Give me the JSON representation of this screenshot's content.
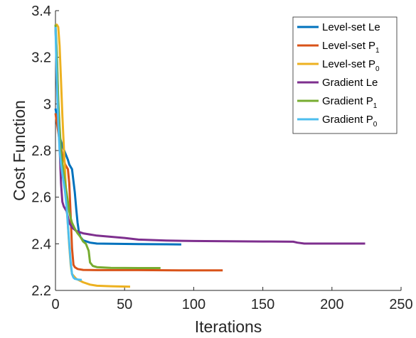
{
  "chart_data": {
    "type": "line",
    "xlabel": "Iterations",
    "ylabel": "Cost Function",
    "xlim": [
      0,
      250
    ],
    "ylim": [
      2.2,
      3.4
    ],
    "xticks": [
      0,
      50,
      100,
      150,
      200,
      250
    ],
    "xtick_labels": [
      "0",
      "50",
      "100",
      "150",
      "200",
      "250"
    ],
    "yticks": [
      2.2,
      2.4,
      2.6,
      2.8,
      3.0,
      3.2,
      3.4
    ],
    "ytick_labels": [
      "2.2",
      "2.4",
      "2.6",
      "2.8",
      "3",
      "3.2",
      "3.4"
    ],
    "grid": false,
    "legend_position": "top-right",
    "series": [
      {
        "name": "Level-set Le",
        "legend_main": "Level-set Le",
        "legend_sub": "",
        "color": "#0072BD",
        "x": [
          0,
          1,
          2,
          3,
          5,
          7,
          9,
          10,
          12,
          14,
          15,
          16,
          17,
          18,
          20,
          25,
          30,
          40,
          60,
          80,
          91
        ],
        "y": [
          2.98,
          2.95,
          2.9,
          2.86,
          2.82,
          2.79,
          2.76,
          2.74,
          2.72,
          2.62,
          2.55,
          2.49,
          2.45,
          2.43,
          2.415,
          2.405,
          2.401,
          2.4,
          2.399,
          2.398,
          2.397
        ]
      },
      {
        "name": "Level-set P1",
        "legend_main": "Level-set P",
        "legend_sub": "1",
        "color": "#D95319",
        "x": [
          0,
          1,
          2,
          3,
          5,
          7,
          9,
          10,
          11,
          12,
          13,
          14,
          16,
          20,
          30,
          60,
          90,
          121
        ],
        "y": [
          2.96,
          2.92,
          2.88,
          2.84,
          2.78,
          2.74,
          2.72,
          2.66,
          2.52,
          2.38,
          2.31,
          2.3,
          2.292,
          2.288,
          2.287,
          2.287,
          2.286,
          2.286
        ]
      },
      {
        "name": "Level-set P0",
        "legend_main": "Level-set P",
        "legend_sub": "0",
        "color": "#EDB120",
        "x": [
          0,
          1,
          2,
          3,
          4,
          5,
          6,
          7,
          8,
          9,
          10,
          11,
          12,
          15,
          20,
          25,
          30,
          40,
          54
        ],
        "y": [
          3.34,
          3.34,
          3.33,
          3.25,
          3.1,
          2.95,
          2.82,
          2.7,
          2.58,
          2.48,
          2.39,
          2.31,
          2.27,
          2.25,
          2.235,
          2.225,
          2.22,
          2.218,
          2.216
        ]
      },
      {
        "name": "Gradient Le",
        "legend_main": "Gradient Le",
        "legend_sub": "",
        "color": "#7E2F8E",
        "x": [
          0,
          1,
          2,
          3,
          4,
          5,
          6,
          8,
          10,
          12,
          15,
          20,
          30,
          50,
          60,
          80,
          100,
          150,
          172,
          175,
          180,
          200,
          224
        ],
        "y": [
          3.32,
          3.2,
          3.0,
          2.82,
          2.66,
          2.58,
          2.56,
          2.54,
          2.49,
          2.47,
          2.455,
          2.445,
          2.435,
          2.425,
          2.418,
          2.414,
          2.412,
          2.41,
          2.409,
          2.405,
          2.401,
          2.401,
          2.401
        ]
      },
      {
        "name": "Gradient P1",
        "legend_main": "Gradient P",
        "legend_sub": "1",
        "color": "#77AC30",
        "x": [
          0,
          1,
          2,
          3,
          4,
          5,
          6,
          7,
          8,
          9,
          10,
          11,
          12,
          14,
          16,
          18,
          20,
          22,
          24,
          25,
          27,
          30,
          40,
          60,
          76
        ],
        "y": [
          3.34,
          3.22,
          3.02,
          2.9,
          2.8,
          2.74,
          2.7,
          2.66,
          2.62,
          2.58,
          2.54,
          2.51,
          2.49,
          2.465,
          2.445,
          2.43,
          2.41,
          2.4,
          2.37,
          2.32,
          2.305,
          2.3,
          2.297,
          2.296,
          2.296
        ]
      },
      {
        "name": "Gradient P0",
        "legend_main": "Gradient P",
        "legend_sub": "0",
        "color": "#4DBEEE",
        "x": [
          0,
          1,
          2,
          3,
          4,
          5,
          6,
          7,
          8,
          9,
          10,
          11,
          12,
          13,
          14,
          16,
          19
        ],
        "y": [
          3.33,
          3.1,
          2.92,
          2.8,
          2.74,
          2.7,
          2.66,
          2.62,
          2.56,
          2.48,
          2.4,
          2.32,
          2.27,
          2.255,
          2.25,
          2.247,
          2.245
        ]
      }
    ]
  }
}
